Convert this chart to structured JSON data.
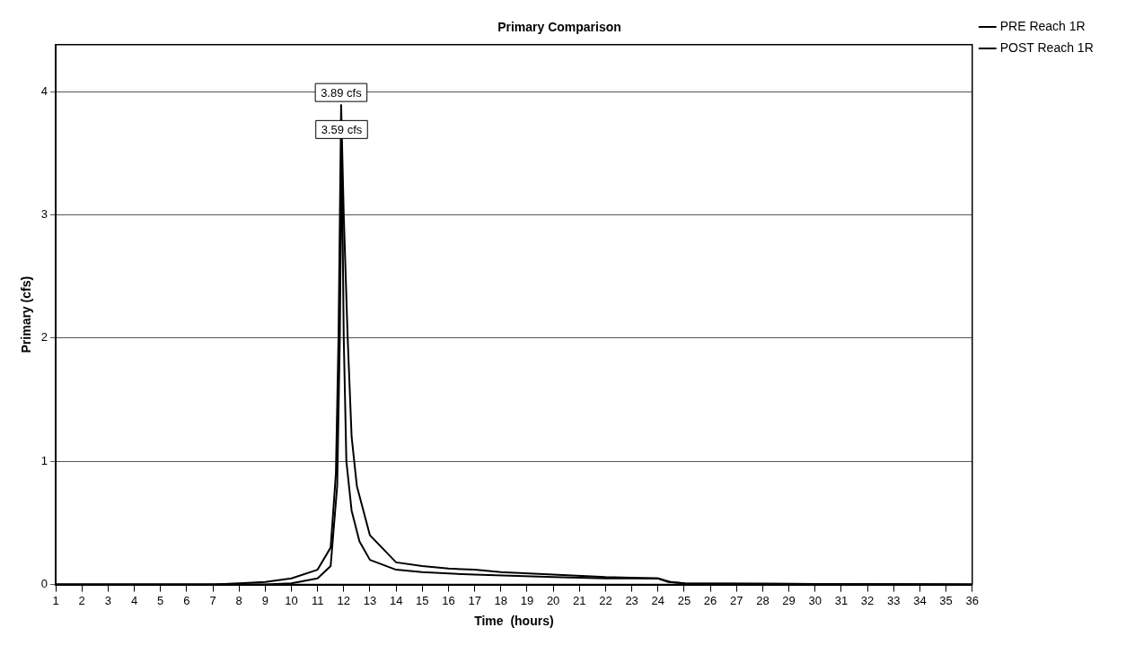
{
  "chart_data": {
    "type": "line",
    "title": "Primary Comparison",
    "xlabel": "Time  (hours)",
    "ylabel": "Primary (cfs)",
    "xlim": [
      1,
      36
    ],
    "xticks": [
      1,
      2,
      3,
      4,
      5,
      6,
      7,
      8,
      9,
      10,
      11,
      12,
      13,
      14,
      15,
      16,
      17,
      18,
      19,
      20,
      21,
      22,
      23,
      24,
      25,
      26,
      27,
      28,
      29,
      30,
      31,
      32,
      33,
      34,
      35,
      36
    ],
    "ylim": [
      0,
      4.38
    ],
    "yticks": [
      0,
      1,
      2,
      3,
      4
    ],
    "grid": "y",
    "legend": "top right",
    "line_style": "solid",
    "marker": "none",
    "series": [
      {
        "name": "PRE Reach 1R",
        "color": "#000000",
        "x": [
          1,
          9,
          10,
          11,
          11.5,
          11.75,
          11.85,
          11.92,
          12.0,
          12.1,
          12.3,
          12.6,
          13,
          14,
          15,
          17,
          20,
          22,
          24,
          24.5,
          25,
          30,
          36
        ],
        "values": [
          0,
          0,
          0.01,
          0.05,
          0.15,
          0.8,
          2.0,
          3.59,
          2.0,
          1.0,
          0.6,
          0.35,
          0.2,
          0.12,
          0.1,
          0.08,
          0.06,
          0.05,
          0.05,
          0.02,
          0.01,
          0.005,
          0
        ]
      },
      {
        "name": "POST Reach 1R",
        "color": "#000000",
        "x": [
          1,
          7,
          8,
          9,
          10,
          11,
          11.5,
          11.7,
          11.8,
          11.9,
          12.0,
          12.15,
          12.3,
          12.5,
          13,
          14,
          15,
          16,
          17,
          18,
          20,
          22,
          24,
          24.4,
          25,
          30,
          34,
          36
        ],
        "values": [
          0,
          0,
          0.01,
          0.02,
          0.05,
          0.12,
          0.3,
          0.9,
          2.0,
          3.89,
          3.0,
          2.0,
          1.2,
          0.8,
          0.4,
          0.18,
          0.15,
          0.13,
          0.12,
          0.1,
          0.08,
          0.06,
          0.05,
          0.02,
          0.01,
          0.005,
          0.003,
          0
        ]
      }
    ],
    "annotations": [
      {
        "text": "3.89 cfs",
        "x": 11.9,
        "y": 3.89
      },
      {
        "text": "3.59 cfs",
        "x": 11.92,
        "y": 3.59
      }
    ]
  }
}
